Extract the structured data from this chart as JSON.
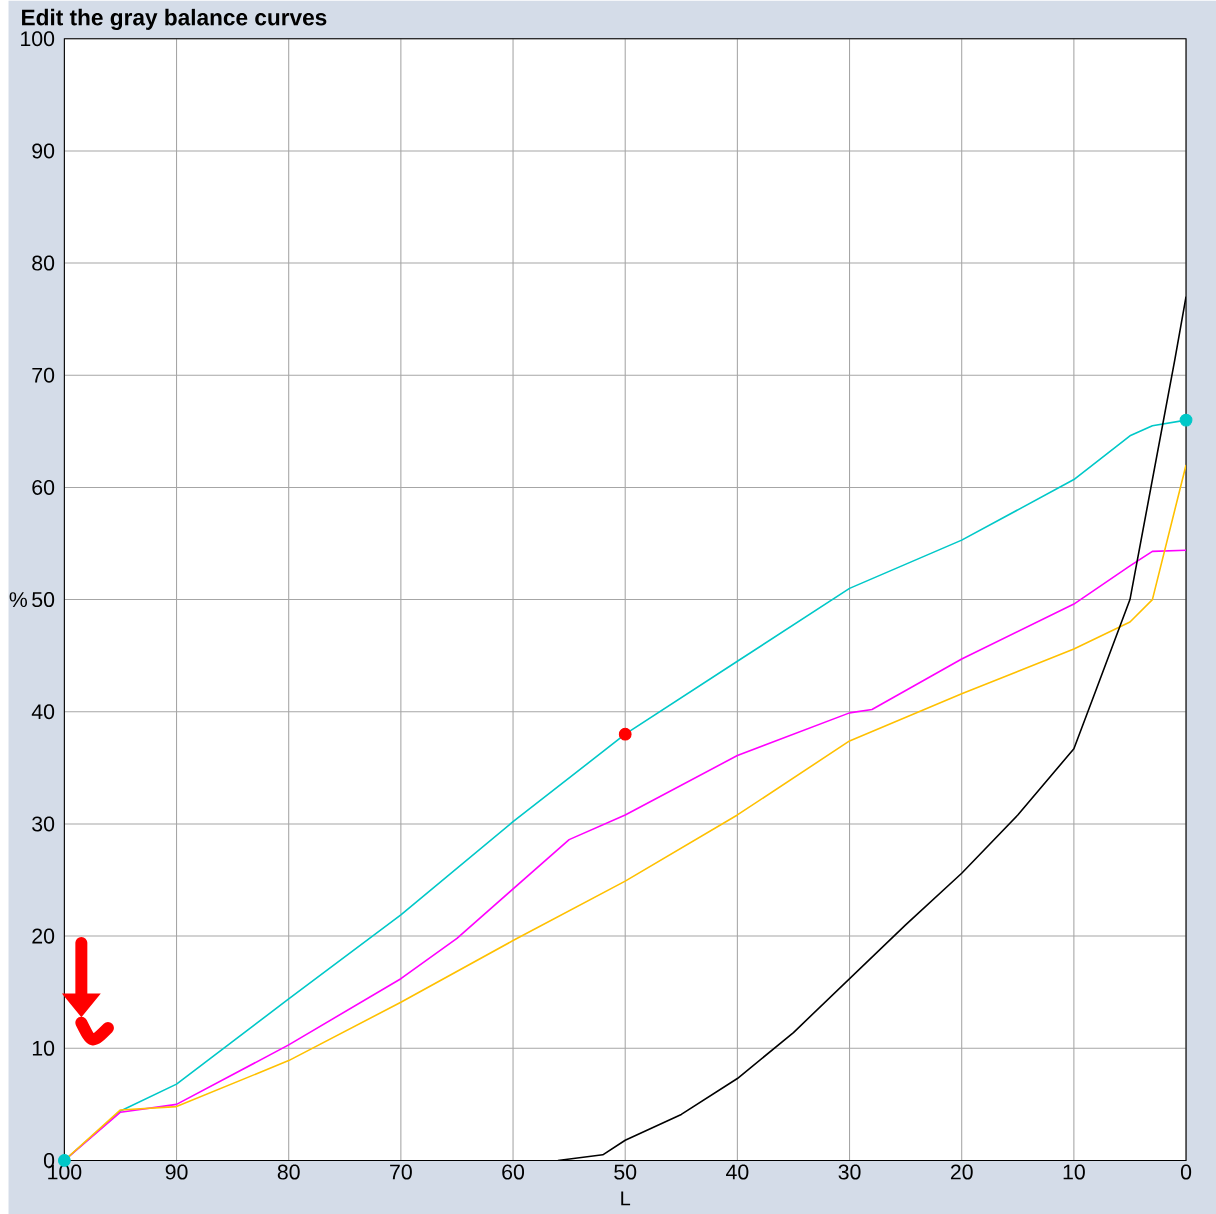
{
  "chart_data": {
    "type": "line",
    "title": "Edit the gray balance curves",
    "xlabel": "L",
    "ylabel": "%",
    "xlim": [
      100,
      0
    ],
    "ylim": [
      0,
      100
    ],
    "xticks": [
      100,
      90,
      80,
      70,
      60,
      50,
      40,
      30,
      20,
      10,
      0
    ],
    "yticks": [
      0,
      10,
      20,
      30,
      40,
      50,
      60,
      70,
      80,
      90,
      100
    ],
    "grid": true,
    "marker": "none",
    "series": [
      {
        "color": "#00c8c8",
        "x": [
          100,
          95,
          90,
          80,
          70,
          60,
          50,
          40,
          30,
          20,
          10,
          5,
          3,
          0
        ],
        "values": [
          0,
          4.4,
          6.8,
          14.4,
          21.9,
          30.2,
          38,
          44.5,
          51,
          55.3,
          60.7,
          64.6,
          65.5,
          66
        ]
      },
      {
        "color": "#ff00ff",
        "x": [
          100,
          95,
          90,
          80,
          70,
          65,
          60,
          55,
          50,
          40,
          30,
          28,
          20,
          10,
          5,
          3,
          0
        ],
        "values": [
          0,
          4.3,
          5,
          10.3,
          16.2,
          19.8,
          24.2,
          28.6,
          30.8,
          36.1,
          39.9,
          40.2,
          44.7,
          49.6,
          53,
          54.3,
          54.4
        ]
      },
      {
        "color": "#ffc000",
        "x": [
          100,
          95,
          90,
          80,
          70,
          60,
          50,
          40,
          30,
          20,
          10,
          5,
          3,
          0
        ],
        "values": [
          0,
          4.5,
          4.8,
          8.9,
          14.1,
          19.6,
          24.9,
          30.8,
          37.4,
          41.6,
          45.6,
          48,
          50,
          62
        ]
      },
      {
        "color": "#000000",
        "x": [
          56,
          52,
          50,
          45,
          40,
          35,
          30,
          25,
          20,
          15,
          10,
          8,
          5,
          3,
          1,
          0
        ],
        "values": [
          0,
          0.5,
          1.8,
          4.1,
          7.3,
          11.4,
          16.2,
          21,
          25.6,
          30.8,
          36.7,
          42,
          50,
          60.7,
          71.4,
          77
        ]
      },
      {
        "type": "scatter",
        "marker": "circle",
        "x": [
          100,
          50,
          0
        ],
        "values": [
          0,
          38,
          66
        ],
        "colors": [
          "#00c8c8",
          "#ff0000",
          "#00c8c8"
        ]
      }
    ]
  }
}
